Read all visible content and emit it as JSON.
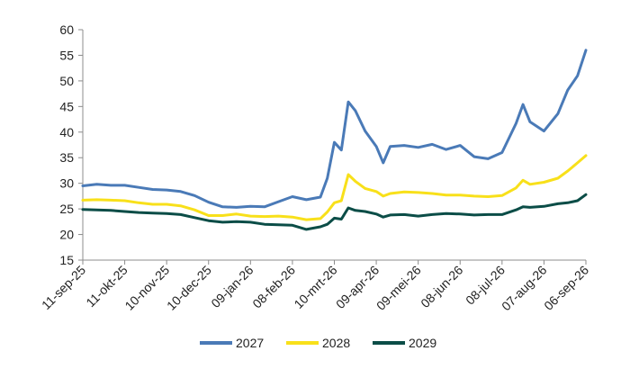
{
  "chart_data": {
    "type": "line",
    "title": "",
    "xlabel": "",
    "ylabel": "",
    "ylim": [
      15,
      60
    ],
    "yticks": [
      15,
      20,
      25,
      30,
      35,
      40,
      45,
      50,
      55,
      60
    ],
    "grid": false,
    "legend_position": "bottom",
    "x_tick_labels": [
      "11-sep-25",
      "11-okt-25",
      "10-nov-25",
      "10-dec-25",
      "09-jan-26",
      "08-feb-26",
      "10-mrt-26",
      "09-apr-26",
      "09-mei-26",
      "08-jun-26",
      "08-jul-26",
      "07-aug-26",
      "06-sep-26"
    ],
    "x_domain_start": "11-sep-25",
    "x_domain_end": "06-sep-26",
    "series": [
      {
        "name": "2027",
        "color": "#4a7ab7",
        "points": [
          [
            "11-sep-25",
            29.5
          ],
          [
            "21-sep-25",
            29.8
          ],
          [
            "01-okt-25",
            29.6
          ],
          [
            "11-okt-25",
            29.6
          ],
          [
            "21-okt-25",
            29.2
          ],
          [
            "31-okt-25",
            28.8
          ],
          [
            "10-nov-25",
            28.7
          ],
          [
            "20-nov-25",
            28.4
          ],
          [
            "30-nov-25",
            27.6
          ],
          [
            "10-dec-25",
            26.3
          ],
          [
            "20-dec-25",
            25.4
          ],
          [
            "30-dec-25",
            25.3
          ],
          [
            "09-jan-26",
            25.5
          ],
          [
            "19-jan-26",
            25.4
          ],
          [
            "29-jan-26",
            26.4
          ],
          [
            "08-feb-26",
            27.4
          ],
          [
            "18-feb-26",
            26.8
          ],
          [
            "28-feb-26",
            27.3
          ],
          [
            "05-mrt-26",
            31.0
          ],
          [
            "10-mrt-26",
            38.0
          ],
          [
            "15-mrt-26",
            36.5
          ],
          [
            "20-mrt-26",
            45.9
          ],
          [
            "25-mrt-26",
            44.2
          ],
          [
            "01-apr-26",
            40.2
          ],
          [
            "09-apr-26",
            37.2
          ],
          [
            "14-apr-26",
            34.0
          ],
          [
            "19-apr-26",
            37.2
          ],
          [
            "29-apr-26",
            37.4
          ],
          [
            "09-mei-26",
            37.0
          ],
          [
            "19-mei-26",
            37.6
          ],
          [
            "29-mei-26",
            36.6
          ],
          [
            "08-jun-26",
            37.4
          ],
          [
            "18-jun-26",
            35.2
          ],
          [
            "28-jun-26",
            34.8
          ],
          [
            "08-jul-26",
            36.0
          ],
          [
            "18-jul-26",
            41.7
          ],
          [
            "23-jul-26",
            45.4
          ],
          [
            "28-jul-26",
            42.0
          ],
          [
            "07-aug-26",
            40.2
          ],
          [
            "17-aug-26",
            43.6
          ],
          [
            "24-aug-26",
            48.2
          ],
          [
            "31-aug-26",
            51.0
          ],
          [
            "06-sep-26",
            56.0
          ]
        ]
      },
      {
        "name": "2028",
        "color": "#f8e01a",
        "points": [
          [
            "11-sep-25",
            26.7
          ],
          [
            "21-sep-25",
            26.8
          ],
          [
            "01-okt-25",
            26.7
          ],
          [
            "11-okt-25",
            26.6
          ],
          [
            "21-okt-25",
            26.2
          ],
          [
            "31-okt-25",
            25.9
          ],
          [
            "10-nov-25",
            25.9
          ],
          [
            "20-nov-25",
            25.6
          ],
          [
            "30-nov-25",
            24.8
          ],
          [
            "10-dec-25",
            23.7
          ],
          [
            "20-dec-25",
            23.7
          ],
          [
            "30-dec-25",
            24.0
          ],
          [
            "09-jan-26",
            23.6
          ],
          [
            "19-jan-26",
            23.5
          ],
          [
            "29-jan-26",
            23.6
          ],
          [
            "08-feb-26",
            23.4
          ],
          [
            "18-feb-26",
            22.9
          ],
          [
            "28-feb-26",
            23.1
          ],
          [
            "05-mrt-26",
            24.4
          ],
          [
            "10-mrt-26",
            26.2
          ],
          [
            "15-mrt-26",
            26.6
          ],
          [
            "20-mrt-26",
            31.7
          ],
          [
            "25-mrt-26",
            30.4
          ],
          [
            "01-apr-26",
            29.0
          ],
          [
            "09-apr-26",
            28.4
          ],
          [
            "14-apr-26",
            27.5
          ],
          [
            "19-apr-26",
            28.0
          ],
          [
            "29-apr-26",
            28.3
          ],
          [
            "09-mei-26",
            28.2
          ],
          [
            "19-mei-26",
            28.0
          ],
          [
            "29-mei-26",
            27.7
          ],
          [
            "08-jun-26",
            27.7
          ],
          [
            "18-jun-26",
            27.5
          ],
          [
            "28-jun-26",
            27.4
          ],
          [
            "08-jul-26",
            27.6
          ],
          [
            "18-jul-26",
            29.1
          ],
          [
            "23-jul-26",
            30.6
          ],
          [
            "28-jul-26",
            29.8
          ],
          [
            "07-aug-26",
            30.2
          ],
          [
            "17-aug-26",
            31.0
          ],
          [
            "24-aug-26",
            32.4
          ],
          [
            "31-aug-26",
            34.0
          ],
          [
            "06-sep-26",
            35.4
          ]
        ]
      },
      {
        "name": "2029",
        "color": "#0b4d47",
        "points": [
          [
            "11-sep-25",
            24.9
          ],
          [
            "21-sep-25",
            24.8
          ],
          [
            "01-okt-25",
            24.7
          ],
          [
            "11-okt-25",
            24.5
          ],
          [
            "21-okt-25",
            24.3
          ],
          [
            "31-okt-25",
            24.2
          ],
          [
            "10-nov-25",
            24.1
          ],
          [
            "20-nov-25",
            23.9
          ],
          [
            "30-nov-25",
            23.3
          ],
          [
            "10-dec-25",
            22.7
          ],
          [
            "20-dec-25",
            22.4
          ],
          [
            "30-dec-25",
            22.5
          ],
          [
            "09-jan-26",
            22.4
          ],
          [
            "19-jan-26",
            22.0
          ],
          [
            "29-jan-26",
            21.9
          ],
          [
            "08-feb-26",
            21.8
          ],
          [
            "18-feb-26",
            21.0
          ],
          [
            "28-feb-26",
            21.5
          ],
          [
            "05-mrt-26",
            22.0
          ],
          [
            "10-mrt-26",
            23.2
          ],
          [
            "15-mrt-26",
            23.0
          ],
          [
            "20-mrt-26",
            25.2
          ],
          [
            "25-mrt-26",
            24.7
          ],
          [
            "01-apr-26",
            24.5
          ],
          [
            "09-apr-26",
            24.0
          ],
          [
            "14-apr-26",
            23.4
          ],
          [
            "19-apr-26",
            23.8
          ],
          [
            "29-apr-26",
            23.9
          ],
          [
            "09-mei-26",
            23.6
          ],
          [
            "19-mei-26",
            23.9
          ],
          [
            "29-mei-26",
            24.1
          ],
          [
            "08-jun-26",
            24.0
          ],
          [
            "18-jun-26",
            23.8
          ],
          [
            "28-jun-26",
            23.9
          ],
          [
            "08-jul-26",
            23.9
          ],
          [
            "18-jul-26",
            24.8
          ],
          [
            "23-jul-26",
            25.4
          ],
          [
            "28-jul-26",
            25.3
          ],
          [
            "07-aug-26",
            25.5
          ],
          [
            "17-aug-26",
            26.0
          ],
          [
            "24-aug-26",
            26.2
          ],
          [
            "31-aug-26",
            26.6
          ],
          [
            "06-sep-26",
            27.8
          ]
        ]
      }
    ]
  }
}
